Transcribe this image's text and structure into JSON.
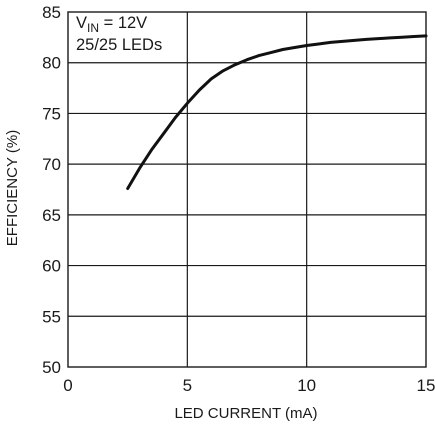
{
  "chart_data": {
    "type": "line",
    "xlabel": "LED CURRENT (mA)",
    "ylabel": "EFFICIENCY (%)",
    "xlim": [
      0,
      15
    ],
    "ylim": [
      50,
      85
    ],
    "x_ticks": [
      "0",
      "5",
      "10",
      "15"
    ],
    "y_ticks": [
      "50",
      "55",
      "60",
      "65",
      "70",
      "75",
      "80",
      "85"
    ],
    "grid": true,
    "annotation": {
      "line1_main": "V",
      "line1_sub": "IN",
      "line1_rest": " = 12V",
      "line2": "25/25 LEDs"
    },
    "series": [
      {
        "x": [
          2.5,
          3.0,
          3.5,
          4.0,
          4.5,
          5.0,
          5.5,
          6.0,
          6.5,
          7.0,
          7.5,
          8.0,
          8.5,
          9.0,
          9.5,
          10.0,
          10.5,
          11.0,
          11.5,
          12.0,
          12.5,
          13.0,
          13.5,
          14.0,
          14.5,
          15.0
        ],
        "y": [
          67.6,
          69.6,
          71.4,
          73.0,
          74.6,
          76.0,
          77.3,
          78.4,
          79.2,
          79.8,
          80.3,
          80.7,
          81.0,
          81.3,
          81.5,
          81.7,
          81.85,
          82.0,
          82.1,
          82.2,
          82.3,
          82.38,
          82.45,
          82.52,
          82.58,
          82.64
        ]
      }
    ]
  }
}
